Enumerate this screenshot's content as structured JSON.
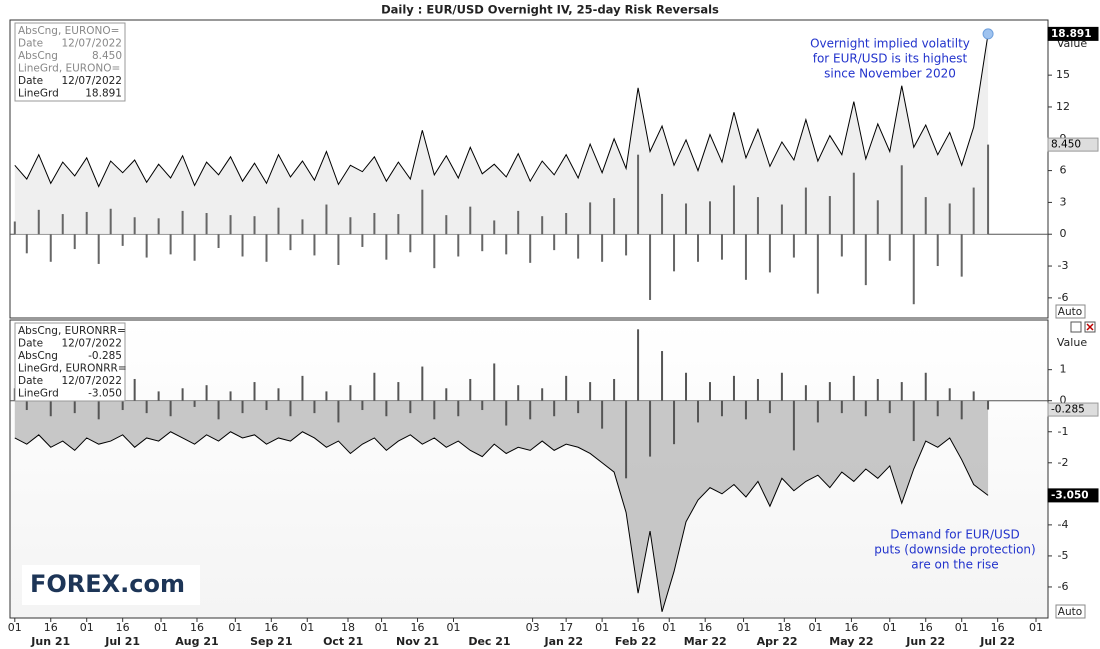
{
  "title": "Daily : EUR/USD Overnight IV, 25-day Risk Reversals",
  "logo": "FOREX.com",
  "chart_data": [
    {
      "type": "combo",
      "value_axis_label": "Value",
      "scale_button": "Auto",
      "xlim": [
        -2,
        431
      ],
      "ylim": [
        -7.9,
        20.2
      ],
      "yticks": [
        -6,
        -3,
        0,
        3,
        6,
        9,
        12,
        15
      ],
      "highlight_last": true,
      "annotation": [
        "Overnight implied volatilty",
        "for EUR/USD is its highest",
        "since November 2020"
      ],
      "x": [
        0,
        5,
        10,
        15,
        20,
        25,
        30,
        35,
        40,
        45,
        50,
        55,
        60,
        65,
        70,
        75,
        80,
        85,
        90,
        95,
        100,
        105,
        110,
        115,
        120,
        125,
        130,
        135,
        140,
        145,
        150,
        155,
        160,
        165,
        170,
        175,
        180,
        185,
        190,
        195,
        200,
        205,
        210,
        215,
        220,
        225,
        230,
        235,
        240,
        245,
        250,
        255,
        260,
        265,
        270,
        275,
        280,
        285,
        290,
        295,
        300,
        305,
        310,
        315,
        320,
        325,
        330,
        335,
        340,
        345,
        350,
        355,
        360,
        365,
        370,
        375,
        380,
        385,
        390,
        395,
        400,
        406
      ],
      "series": [
        {
          "name": "AbsCng, EURONO=",
          "kind": "bar",
          "color": "#666666",
          "info": [
            [
              "Date",
              "12/07/2022"
            ],
            [
              "AbsCng",
              "8.450"
            ]
          ],
          "last_label": {
            "value": 8.45,
            "label": "8.450"
          },
          "values": [
            1.2,
            -1.8,
            2.3,
            -2.6,
            1.9,
            -1.4,
            2.1,
            -2.8,
            2.4,
            -1.1,
            1.6,
            -2.2,
            1.5,
            -1.9,
            2.2,
            -2.5,
            2.0,
            -1.3,
            1.8,
            -2.1,
            1.7,
            -2.6,
            2.5,
            -1.5,
            1.4,
            -2.0,
            2.8,
            -2.9,
            1.6,
            -1.2,
            2.0,
            -2.4,
            1.9,
            -1.7,
            4.2,
            -3.2,
            1.8,
            -2.1,
            2.6,
            -1.6,
            1.3,
            -1.9,
            2.2,
            -2.7,
            1.7,
            -1.5,
            2.0,
            -2.3,
            3.0,
            -2.6,
            3.4,
            -2.0,
            7.5,
            -6.2,
            3.8,
            -3.5,
            2.9,
            -2.6,
            3.1,
            -2.4,
            4.6,
            -4.3,
            3.5,
            -3.6,
            2.8,
            -2.2,
            4.4,
            -5.6,
            3.6,
            -2.1,
            5.8,
            -4.8,
            3.2,
            -2.5,
            6.5,
            -6.6,
            3.5,
            -3.0,
            2.9,
            -4.0,
            4.4,
            8.45
          ]
        },
        {
          "name": "LineGrd, EURONO=",
          "kind": "line",
          "color": "#000000",
          "area_color": "#ececec",
          "info": [
            [
              "Date",
              "12/07/2022"
            ],
            [
              "LineGrd",
              "18.891"
            ]
          ],
          "last_label": {
            "value": 18.891,
            "label": "18.891"
          },
          "values": [
            6.5,
            5.2,
            7.5,
            4.8,
            6.8,
            5.5,
            7.2,
            4.5,
            6.9,
            5.8,
            7.0,
            4.9,
            6.6,
            5.3,
            7.4,
            4.6,
            6.8,
            5.6,
            7.3,
            5.0,
            6.7,
            4.8,
            7.5,
            5.4,
            6.9,
            5.1,
            7.8,
            4.7,
            6.5,
            5.9,
            7.3,
            5.0,
            6.8,
            5.2,
            9.8,
            5.6,
            7.4,
            5.3,
            8.2,
            5.7,
            6.6,
            5.4,
            7.6,
            5.0,
            6.9,
            5.6,
            7.5,
            5.3,
            8.5,
            5.8,
            9.0,
            6.2,
            13.8,
            7.8,
            10.2,
            6.5,
            8.9,
            6.0,
            9.4,
            6.8,
            11.5,
            7.2,
            9.9,
            6.4,
            8.7,
            7.0,
            10.8,
            6.9,
            9.3,
            7.5,
            12.5,
            7.1,
            10.4,
            7.8,
            14.0,
            8.2,
            10.3,
            7.5,
            9.6,
            6.5,
            10.1,
            18.891
          ]
        }
      ]
    },
    {
      "type": "combo",
      "value_axis_label": "Value",
      "scale_button": "Auto",
      "xlim": [
        -2,
        431
      ],
      "ylim": [
        -7.0,
        2.6
      ],
      "yticks": [
        -6,
        -5,
        -4,
        -3,
        -2,
        -1,
        0,
        1
      ],
      "annotation": [
        "Demand for EUR/USD",
        "puts (downside protection)",
        "are on the rise"
      ],
      "xticks": [
        {
          "value": 0,
          "label": "01"
        },
        {
          "value": 15,
          "label": "16"
        },
        {
          "value": 30,
          "label": "01"
        },
        {
          "value": 45,
          "label": "16"
        },
        {
          "value": 61,
          "label": "01"
        },
        {
          "value": 76,
          "label": "16"
        },
        {
          "value": 92,
          "label": "01"
        },
        {
          "value": 107,
          "label": "16"
        },
        {
          "value": 122,
          "label": "01"
        },
        {
          "value": 139,
          "label": "18"
        },
        {
          "value": 153,
          "label": "01"
        },
        {
          "value": 168,
          "label": "16"
        },
        {
          "value": 183,
          "label": "01"
        },
        {
          "value": 216,
          "label": "03"
        },
        {
          "value": 230,
          "label": "17"
        },
        {
          "value": 245,
          "label": "01"
        },
        {
          "value": 260,
          "label": "16"
        },
        {
          "value": 273,
          "label": "01"
        },
        {
          "value": 288,
          "label": "16"
        },
        {
          "value": 304,
          "label": "01"
        },
        {
          "value": 321,
          "label": "18"
        },
        {
          "value": 334,
          "label": "01"
        },
        {
          "value": 349,
          "label": "16"
        },
        {
          "value": 365,
          "label": "01"
        },
        {
          "value": 380,
          "label": "16"
        },
        {
          "value": 395,
          "label": "01"
        },
        {
          "value": 410,
          "label": "16"
        },
        {
          "value": 426,
          "label": "01"
        }
      ],
      "month_ticks": [
        {
          "value": 15,
          "label": "Jun 21"
        },
        {
          "value": 45,
          "label": "Jul 21"
        },
        {
          "value": 76,
          "label": "Aug 21"
        },
        {
          "value": 107,
          "label": "Sep 21"
        },
        {
          "value": 137,
          "label": "Oct 21"
        },
        {
          "value": 168,
          "label": "Nov 21"
        },
        {
          "value": 198,
          "label": "Dec 21"
        },
        {
          "value": 229,
          "label": "Jan 22"
        },
        {
          "value": 259,
          "label": "Feb 22"
        },
        {
          "value": 288,
          "label": "Mar 22"
        },
        {
          "value": 318,
          "label": "Apr 22"
        },
        {
          "value": 349,
          "label": "May 22"
        },
        {
          "value": 380,
          "label": "Jun 22"
        },
        {
          "value": 410,
          "label": "Jul 22"
        }
      ],
      "x": [
        0,
        5,
        10,
        15,
        20,
        25,
        30,
        35,
        40,
        45,
        50,
        55,
        60,
        65,
        70,
        75,
        80,
        85,
        90,
        95,
        100,
        105,
        110,
        115,
        120,
        125,
        130,
        135,
        140,
        145,
        150,
        155,
        160,
        165,
        170,
        175,
        180,
        185,
        190,
        195,
        200,
        205,
        210,
        215,
        220,
        225,
        230,
        235,
        240,
        245,
        250,
        255,
        260,
        265,
        270,
        275,
        280,
        285,
        290,
        295,
        300,
        305,
        310,
        315,
        320,
        325,
        330,
        335,
        340,
        345,
        350,
        355,
        360,
        365,
        370,
        375,
        380,
        385,
        390,
        395,
        400,
        406
      ],
      "series": [
        {
          "name": "AbsCng, EURONRR=",
          "kind": "bar",
          "color": "#555555",
          "info": [
            [
              "Date",
              "12/07/2022"
            ],
            [
              "AbsCng",
              "-0.285"
            ]
          ],
          "last_label": {
            "value": -0.285,
            "label": "-0.285"
          },
          "values": [
            0.4,
            -0.3,
            0.3,
            -0.5,
            0.6,
            -0.4,
            0.2,
            -0.6,
            0.5,
            -0.3,
            0.7,
            -0.4,
            0.3,
            -0.5,
            0.4,
            -0.2,
            0.5,
            -0.6,
            0.3,
            -0.4,
            0.6,
            -0.3,
            0.4,
            -0.5,
            0.8,
            -0.4,
            0.3,
            -0.7,
            0.5,
            -0.3,
            0.9,
            -0.5,
            0.6,
            -0.4,
            1.1,
            -0.6,
            0.4,
            -0.5,
            0.7,
            -0.3,
            1.2,
            -0.8,
            0.5,
            -0.6,
            0.4,
            -0.5,
            0.8,
            -0.4,
            0.6,
            -0.9,
            0.7,
            -2.5,
            2.3,
            -1.8,
            1.6,
            -1.4,
            0.9,
            -0.7,
            0.6,
            -0.5,
            0.8,
            -0.6,
            0.7,
            -0.4,
            0.9,
            -1.6,
            0.5,
            -0.7,
            0.6,
            -0.4,
            0.8,
            -0.5,
            0.7,
            -0.4,
            0.6,
            -1.3,
            0.9,
            -0.5,
            0.4,
            -0.6,
            0.3,
            -0.285
          ]
        },
        {
          "name": "LineGrd, EURONRR=",
          "kind": "line",
          "color": "#000000",
          "area_color": "#bdbdbd",
          "info": [
            [
              "Date",
              "12/07/2022"
            ],
            [
              "LineGrd",
              "-3.050"
            ]
          ],
          "last_label": {
            "value": -3.05,
            "label": "-3.050"
          },
          "values": [
            -1.2,
            -1.4,
            -1.1,
            -1.5,
            -1.3,
            -1.6,
            -1.2,
            -1.4,
            -1.3,
            -1.1,
            -1.5,
            -1.2,
            -1.3,
            -1.0,
            -1.2,
            -1.4,
            -1.1,
            -1.3,
            -1.0,
            -1.2,
            -1.1,
            -1.4,
            -1.2,
            -1.3,
            -1.0,
            -1.2,
            -1.5,
            -1.3,
            -1.7,
            -1.4,
            -1.2,
            -1.6,
            -1.3,
            -1.1,
            -1.4,
            -1.2,
            -1.5,
            -1.3,
            -1.6,
            -1.8,
            -1.4,
            -1.7,
            -1.5,
            -1.6,
            -1.3,
            -1.6,
            -1.4,
            -1.5,
            -1.7,
            -2.0,
            -2.3,
            -3.6,
            -6.2,
            -4.2,
            -6.8,
            -5.5,
            -3.9,
            -3.2,
            -2.8,
            -3.0,
            -2.7,
            -3.1,
            -2.6,
            -3.4,
            -2.5,
            -2.9,
            -2.6,
            -2.4,
            -2.8,
            -2.3,
            -2.6,
            -2.2,
            -2.5,
            -2.1,
            -3.3,
            -2.2,
            -1.3,
            -1.5,
            -1.2,
            -1.9,
            -2.7,
            -3.05
          ]
        }
      ]
    }
  ]
}
